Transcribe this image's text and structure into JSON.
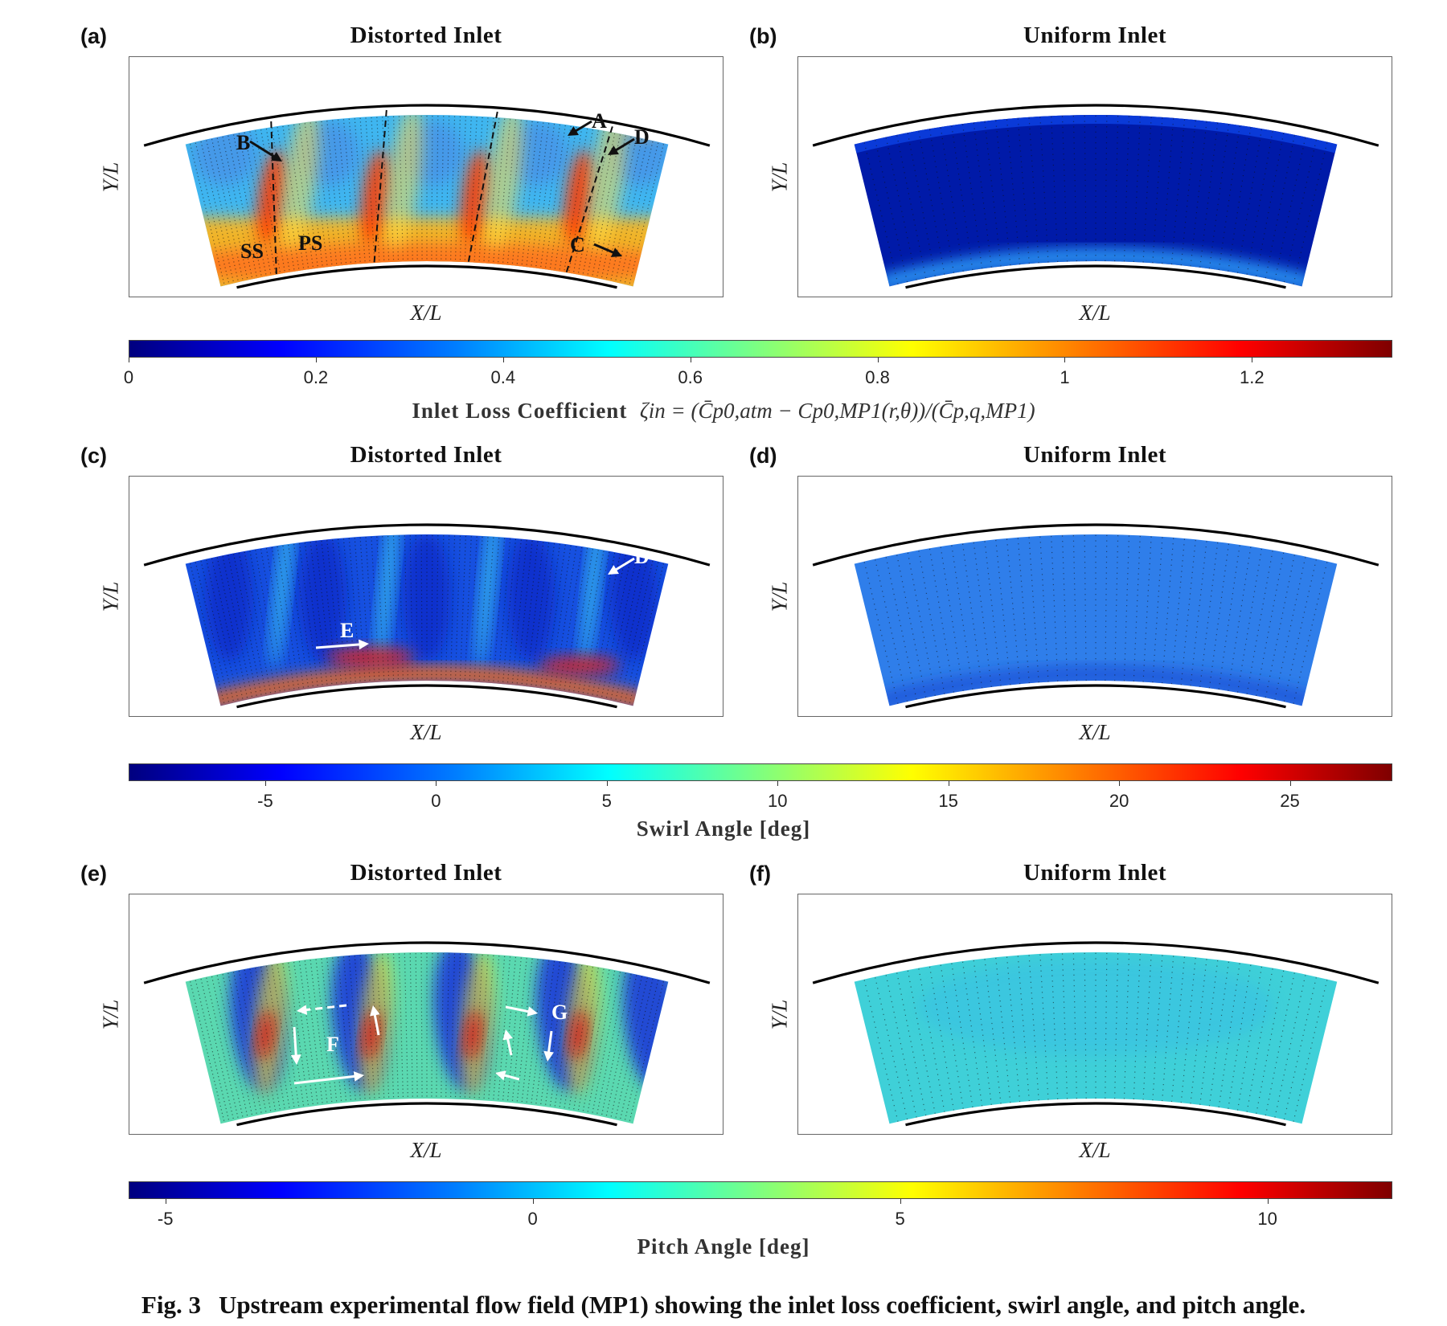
{
  "panels": [
    {
      "letter": "(a)",
      "title": "Distorted Inlet",
      "xlabel": "X/L",
      "ylabel": "Y/L",
      "kind": "loss-distorted",
      "annotations": [
        {
          "text": "B"
        },
        {
          "text": "A"
        },
        {
          "text": "D"
        },
        {
          "text": "SS"
        },
        {
          "text": "PS"
        },
        {
          "text": "C"
        }
      ]
    },
    {
      "letter": "(b)",
      "title": "Uniform Inlet",
      "xlabel": "X/L",
      "ylabel": "Y/L",
      "kind": "loss-uniform",
      "annotations": []
    },
    {
      "letter": "(c)",
      "title": "Distorted Inlet",
      "xlabel": "X/L",
      "ylabel": "Y/L",
      "kind": "swirl-distorted",
      "annotations": [
        {
          "text": "D"
        },
        {
          "text": "E"
        }
      ]
    },
    {
      "letter": "(d)",
      "title": "Uniform Inlet",
      "xlabel": "X/L",
      "ylabel": "Y/L",
      "kind": "swirl-uniform",
      "annotations": []
    },
    {
      "letter": "(e)",
      "title": "Distorted Inlet",
      "xlabel": "X/L",
      "ylabel": "Y/L",
      "kind": "pitch-distorted",
      "annotations": [
        {
          "text": "F"
        },
        {
          "text": "G"
        }
      ]
    },
    {
      "letter": "(f)",
      "title": "Uniform Inlet",
      "xlabel": "X/L",
      "ylabel": "Y/L",
      "kind": "pitch-uniform",
      "annotations": []
    }
  ],
  "colorbars": [
    {
      "title": "Inlet Loss Coefficient",
      "formula": "ζin = (C̄p0,atm − Cp0,MP1(r,θ))/(C̄p,q,MP1)",
      "range": [
        0,
        1.35
      ],
      "ticks": [
        "0",
        "0.2",
        "0.4",
        "0.6",
        "0.8",
        "1",
        "1.2"
      ],
      "tick_values": [
        0,
        0.2,
        0.4,
        0.6,
        0.8,
        1,
        1.2
      ]
    },
    {
      "title": "Swirl Angle [deg]",
      "formula": "",
      "range": [
        -9,
        28
      ],
      "ticks": [
        "-5",
        "0",
        "5",
        "10",
        "15",
        "20",
        "25"
      ],
      "tick_values": [
        -5,
        0,
        5,
        10,
        15,
        20,
        25
      ]
    },
    {
      "title": "Pitch Angle [deg]",
      "formula": "",
      "range": [
        -5.5,
        11.7
      ],
      "ticks": [
        "-5",
        "0",
        "5",
        "10"
      ],
      "tick_values": [
        -5,
        0,
        5,
        10
      ]
    }
  ],
  "caption": {
    "number": "Fig. 3",
    "text": "Upstream experimental flow field (MP1) showing the inlet loss coefficient, swirl angle, and pitch angle."
  }
}
